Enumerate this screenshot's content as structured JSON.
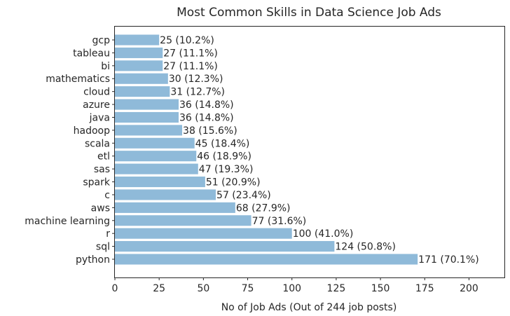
{
  "chart_data": {
    "type": "bar",
    "orientation": "horizontal",
    "title": "Most Common Skills in Data Science Job Ads",
    "xlabel": "No of Job Ads (Out of 244 job posts)",
    "ylabel": "",
    "xlim": [
      0,
      220
    ],
    "xticks": [
      0,
      25,
      50,
      75,
      100,
      125,
      150,
      175,
      200
    ],
    "grid": false,
    "bar_color": "#8fbad9",
    "categories": [
      "python",
      "sql",
      "r",
      "machine learning",
      "aws",
      "c",
      "spark",
      "sas",
      "etl",
      "scala",
      "hadoop",
      "java",
      "azure",
      "cloud",
      "mathematics",
      "bi",
      "tableau",
      "gcp"
    ],
    "values": [
      171,
      124,
      100,
      77,
      68,
      57,
      51,
      47,
      46,
      45,
      38,
      36,
      36,
      31,
      30,
      27,
      27,
      25
    ],
    "data_labels": [
      "171 (70.1%)",
      "124 (50.8%)",
      "100 (41.0%)",
      "77 (31.6%)",
      "68 (27.9%)",
      "57 (23.4%)",
      "51 (20.9%)",
      "47 (19.3%)",
      "46 (18.9%)",
      "45 (18.4%)",
      "38 (15.6%)",
      "36 (14.8%)",
      "36 (14.8%)",
      "31 (12.7%)",
      "30 (12.3%)",
      "27 (11.1%)",
      "27 (11.1%)",
      "25 (10.2%)"
    ]
  }
}
